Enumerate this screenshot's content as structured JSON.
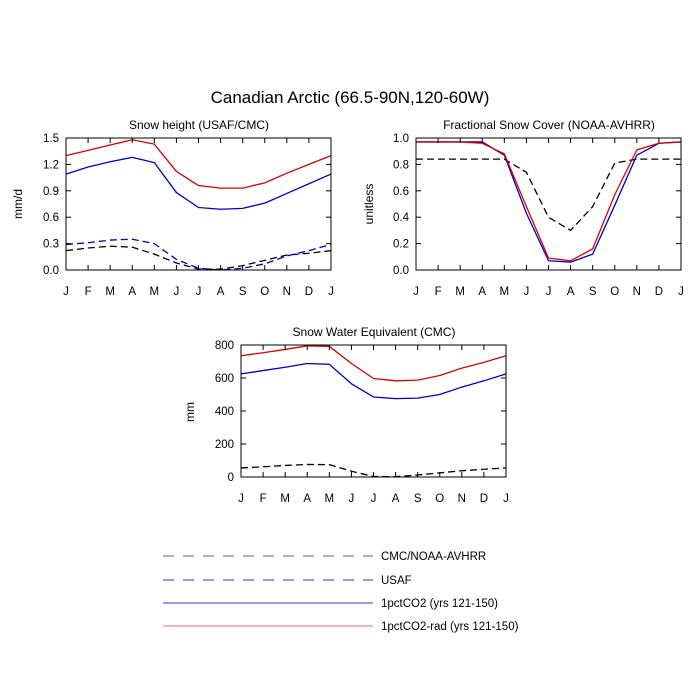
{
  "figure": {
    "title": "Canadian Arctic (66.5-90N,120-60W)"
  },
  "colors": {
    "cmc": "#000000",
    "usaf": "#0000cc",
    "co2": "#0000cc",
    "rad": "#dd0000"
  },
  "chart_data": [
    {
      "type": "line",
      "title": "Snow height (USAF/CMC)",
      "ylabel": "mm/d",
      "xlabel": "",
      "categories": [
        "J",
        "F",
        "M",
        "A",
        "M",
        "J",
        "J",
        "A",
        "S",
        "O",
        "N",
        "D",
        "J"
      ],
      "ylim": [
        0,
        1.5
      ],
      "yticks": [
        0.0,
        0.3,
        0.6,
        0.9,
        1.2,
        1.5
      ],
      "ytick_labels": [
        "0.0",
        "0.3",
        "0.6",
        "0.9",
        "1.2",
        "1.5"
      ],
      "series": [
        {
          "name": "CMC/NOAA-AVHRR",
          "style": "dashed",
          "color": "#000000",
          "values": [
            0.22,
            0.25,
            0.27,
            0.26,
            0.18,
            0.08,
            0.01,
            0.01,
            0.05,
            0.11,
            0.17,
            0.19,
            0.22
          ]
        },
        {
          "name": "USAF",
          "style": "dashed",
          "color": "#0000cc",
          "values": [
            0.29,
            0.31,
            0.34,
            0.35,
            0.3,
            0.12,
            0.02,
            0.0,
            0.02,
            0.07,
            0.16,
            0.22,
            0.29
          ]
        },
        {
          "name": "1pctCO2 (yrs 121-150)",
          "style": "solid",
          "color": "#0000cc",
          "values": [
            1.09,
            1.17,
            1.23,
            1.28,
            1.22,
            0.88,
            0.71,
            0.69,
            0.7,
            0.76,
            0.87,
            0.98,
            1.09
          ]
        },
        {
          "name": "1pctCO2-rad (yrs 121-150)",
          "style": "solid",
          "color": "#dd0000",
          "values": [
            1.3,
            1.36,
            1.42,
            1.48,
            1.43,
            1.12,
            0.96,
            0.93,
            0.93,
            0.99,
            1.1,
            1.2,
            1.3
          ]
        }
      ]
    },
    {
      "type": "line",
      "title": "Fractional Snow Cover (NOAA-AVHRR)",
      "ylabel": "unitless",
      "xlabel": "",
      "categories": [
        "J",
        "F",
        "M",
        "A",
        "M",
        "J",
        "J",
        "A",
        "S",
        "O",
        "N",
        "D",
        "J"
      ],
      "ylim": [
        0,
        1.0
      ],
      "yticks": [
        0.0,
        0.2,
        0.4,
        0.6,
        0.8,
        1.0
      ],
      "ytick_labels": [
        "0.0",
        "0.2",
        "0.4",
        "0.6",
        "0.8",
        "1.0"
      ],
      "series": [
        {
          "name": "CMC/NOAA-AVHRR",
          "style": "dashed",
          "color": "#000000",
          "values": [
            0.84,
            0.84,
            0.84,
            0.84,
            0.84,
            0.74,
            0.4,
            0.3,
            0.48,
            0.81,
            0.84,
            0.84,
            0.84
          ]
        },
        {
          "name": "1pctCO2 (yrs 121-150)",
          "style": "solid",
          "color": "#0000cc",
          "values": [
            0.97,
            0.97,
            0.97,
            0.97,
            0.87,
            0.43,
            0.07,
            0.06,
            0.12,
            0.49,
            0.87,
            0.96,
            0.97
          ]
        },
        {
          "name": "1pctCO2-rad (yrs 121-150)",
          "style": "solid",
          "color": "#dd0000",
          "values": [
            0.97,
            0.97,
            0.97,
            0.96,
            0.88,
            0.48,
            0.09,
            0.07,
            0.16,
            0.57,
            0.91,
            0.96,
            0.97
          ]
        }
      ]
    },
    {
      "type": "line",
      "title": "Snow Water Equivalent (CMC)",
      "ylabel": "mm",
      "xlabel": "",
      "categories": [
        "J",
        "F",
        "M",
        "A",
        "M",
        "J",
        "J",
        "A",
        "S",
        "O",
        "N",
        "D",
        "J"
      ],
      "ylim": [
        0,
        800
      ],
      "yticks": [
        0,
        200,
        400,
        600,
        800
      ],
      "ytick_labels": [
        "0",
        "200",
        "400",
        "600",
        "800"
      ],
      "series": [
        {
          "name": "CMC/NOAA-AVHRR",
          "style": "dashed",
          "color": "#000000",
          "values": [
            55,
            62,
            70,
            76,
            75,
            35,
            3,
            2,
            12,
            25,
            38,
            47,
            55
          ]
        },
        {
          "name": "1pctCO2 (yrs 121-150)",
          "style": "solid",
          "color": "#0000cc",
          "values": [
            625,
            645,
            665,
            688,
            683,
            565,
            485,
            475,
            478,
            500,
            545,
            583,
            625
          ]
        },
        {
          "name": "1pctCO2-rad (yrs 121-150)",
          "style": "solid",
          "color": "#dd0000",
          "values": [
            735,
            753,
            773,
            795,
            792,
            688,
            597,
            583,
            587,
            615,
            660,
            695,
            735
          ]
        }
      ]
    }
  ],
  "legend": {
    "items": [
      {
        "label": "CMC/NOAA-AVHRR",
        "style": "dashed",
        "color": "#666666"
      },
      {
        "label": "USAF",
        "style": "dashed",
        "color": "#3333cc"
      },
      {
        "label": "1pctCO2 (yrs 121-150)",
        "style": "solid",
        "color": "#3333cc"
      },
      {
        "label": "1pctCO2-rad (yrs 121-150)",
        "style": "solid",
        "color": "#ff6666"
      }
    ]
  }
}
